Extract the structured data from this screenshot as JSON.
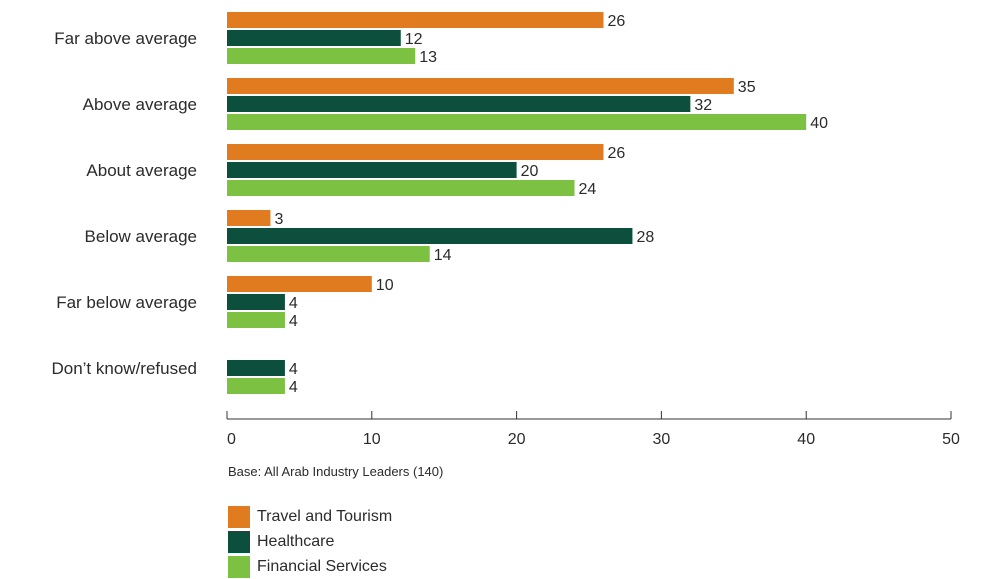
{
  "chart_data": {
    "type": "bar",
    "orientation": "horizontal",
    "categories": [
      "Far above average",
      "Above average",
      "About average",
      "Below average",
      "Far below average",
      "Don’t know/refused"
    ],
    "series": [
      {
        "name": "Travel and Tourism",
        "color": "#e07b1f",
        "values": [
          26,
          35,
          26,
          3,
          10,
          null
        ]
      },
      {
        "name": "Healthcare",
        "color": "#0c4f3c",
        "values": [
          12,
          32,
          20,
          28,
          4,
          4
        ]
      },
      {
        "name": "Financial Services",
        "color": "#7cc142",
        "values": [
          13,
          40,
          24,
          14,
          4,
          4
        ]
      }
    ],
    "xlim": [
      0,
      50
    ],
    "xticks": [
      0,
      10,
      20,
      30,
      40,
      50
    ],
    "grid": false,
    "legend_position": "bottom-left"
  },
  "note": "Base: All Arab Industry Leaders (140)"
}
